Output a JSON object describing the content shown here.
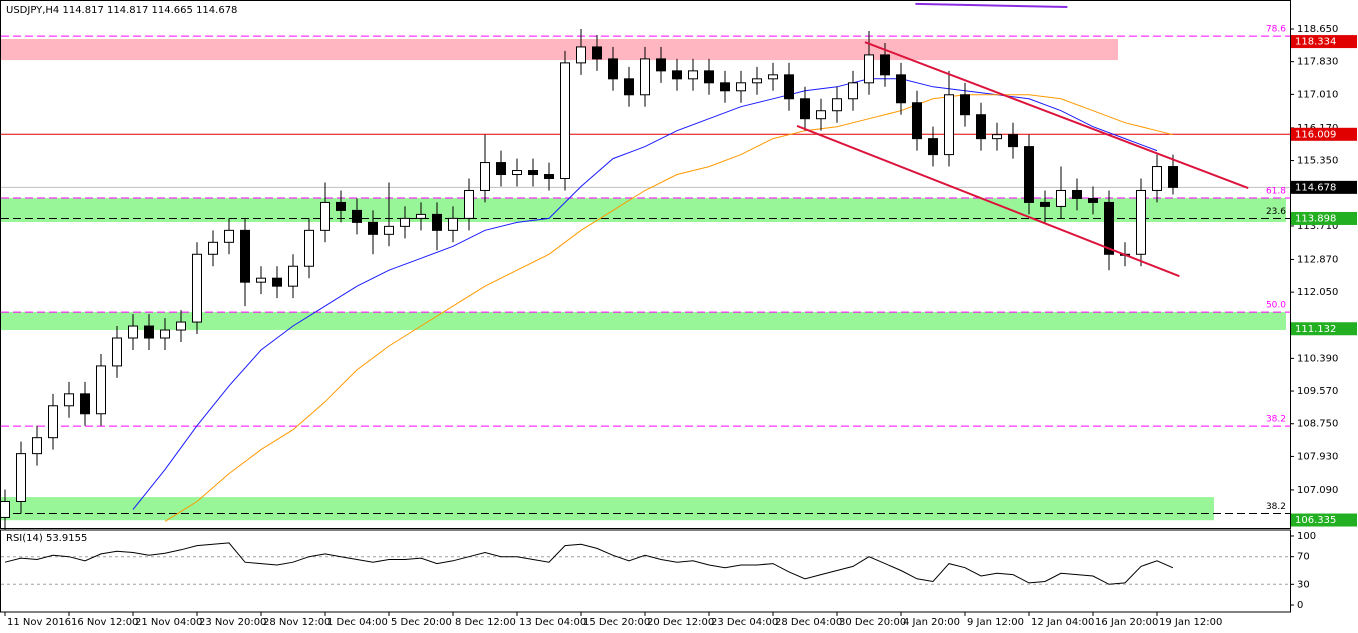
{
  "chart_data": [
    {
      "type": "candlestick",
      "title": "USDJPY,H4  114.817 114.817 114.665 114.678",
      "xlim": [
        -0.3125,
        80.3125
      ],
      "xticks": [
        {
          "value": 0,
          "label": "11 Nov 2016"
        },
        {
          "value": 4,
          "label": "16 Nov 12:00"
        },
        {
          "value": 8,
          "label": "21 Nov 04:00"
        },
        {
          "value": 12,
          "label": "23 Nov 20:00"
        },
        {
          "value": 16,
          "label": "28 Nov 12:00"
        },
        {
          "value": 20,
          "label": "1 Dec 04:00"
        },
        {
          "value": 24,
          "label": "5 Dec 20:00"
        },
        {
          "value": 28,
          "label": "8 Dec 12:00"
        },
        {
          "value": 32,
          "label": "13 Dec 04:00"
        },
        {
          "value": 36,
          "label": "15 Dec 20:00"
        },
        {
          "value": 40,
          "label": "20 Dec 12:00"
        },
        {
          "value": 44,
          "label": "23 Dec 04:00"
        },
        {
          "value": 48,
          "label": "28 Dec 04:00"
        },
        {
          "value": 52,
          "label": "30 Dec 20:00"
        },
        {
          "value": 56,
          "label": "4 Jan 20:00"
        },
        {
          "value": 60,
          "label": "9 Jan 12:00"
        },
        {
          "value": 64,
          "label": "12 Jan 04:00"
        },
        {
          "value": 68,
          "label": "16 Jan 20:00"
        },
        {
          "value": 72,
          "label": "19 Jan 12:00"
        }
      ],
      "ylim": [
        106.135,
        119.377
      ],
      "yticks": [
        {
          "value": 118.65,
          "label": "118.650"
        },
        {
          "value": 117.83,
          "label": "117.830"
        },
        {
          "value": 117.01,
          "label": "117.010"
        },
        {
          "value": 116.17,
          "label": "116.170"
        },
        {
          "value": 115.35,
          "label": "115.350"
        },
        {
          "value": 113.71,
          "label": "113.710"
        },
        {
          "value": 112.87,
          "label": "112.870"
        },
        {
          "value": 112.05,
          "label": "112.050"
        },
        {
          "value": 110.39,
          "label": "110.390"
        },
        {
          "value": 109.57,
          "label": "109.570"
        },
        {
          "value": 108.75,
          "label": "108.750"
        },
        {
          "value": 107.93,
          "label": "107.930"
        },
        {
          "value": 107.09,
          "label": "107.090"
        }
      ],
      "open": [
        106.4,
        106.8,
        108.0,
        108.4,
        109.2,
        109.5,
        109.0,
        110.2,
        110.9,
        111.2,
        110.9,
        111.1,
        111.3,
        113.0,
        113.3,
        113.6,
        112.3,
        112.4,
        112.2,
        112.7,
        113.6,
        114.3,
        114.1,
        113.8,
        113.5,
        113.7,
        113.9,
        114.0,
        113.6,
        113.9,
        114.6,
        115.3,
        115.0,
        115.1,
        115.0,
        114.9,
        117.8,
        118.2,
        117.9,
        117.4,
        117.0,
        117.9,
        117.6,
        117.4,
        117.6,
        117.3,
        117.1,
        117.3,
        117.4,
        117.5,
        116.9,
        116.4,
        116.6,
        116.9,
        117.3,
        118.0,
        117.5,
        116.8,
        115.9,
        115.5,
        117.0,
        116.5,
        115.9,
        116.0,
        115.7,
        114.3,
        114.2,
        114.6,
        114.4,
        114.3,
        113.0,
        113.0,
        114.6,
        115.2
      ],
      "high": [
        107.1,
        108.3,
        108.7,
        109.5,
        109.8,
        109.8,
        110.5,
        111.2,
        111.5,
        111.5,
        111.4,
        111.6,
        113.3,
        113.6,
        113.9,
        113.9,
        112.7,
        112.7,
        113.0,
        113.9,
        114.8,
        114.6,
        114.4,
        114.1,
        114.8,
        114.2,
        114.3,
        114.3,
        114.2,
        114.9,
        116.0,
        115.6,
        115.4,
        115.4,
        115.3,
        118.1,
        118.65,
        118.5,
        118.2,
        117.7,
        118.2,
        118.2,
        117.9,
        117.9,
        117.9,
        117.6,
        117.6,
        117.7,
        117.8,
        117.8,
        117.2,
        116.9,
        117.2,
        117.6,
        118.6,
        118.3,
        117.8,
        117.1,
        116.2,
        117.6,
        117.3,
        116.8,
        116.3,
        116.3,
        116.0,
        114.6,
        115.2,
        114.9,
        114.7,
        114.6,
        113.3,
        114.9,
        115.5,
        115.5
      ],
      "low": [
        106.1,
        106.5,
        107.7,
        108.1,
        108.9,
        108.7,
        108.7,
        109.9,
        110.6,
        110.6,
        110.6,
        110.8,
        111.0,
        112.7,
        113.0,
        111.7,
        112.0,
        111.9,
        111.9,
        112.4,
        113.3,
        113.8,
        113.5,
        113.0,
        113.2,
        113.4,
        113.6,
        113.1,
        113.3,
        113.6,
        114.3,
        114.7,
        114.7,
        114.7,
        114.6,
        114.6,
        117.5,
        117.6,
        117.1,
        116.7,
        116.7,
        117.3,
        117.1,
        117.1,
        117.0,
        116.8,
        116.8,
        117.0,
        117.1,
        116.6,
        116.1,
        116.1,
        116.3,
        116.6,
        117.0,
        117.2,
        116.5,
        115.6,
        115.2,
        115.2,
        116.2,
        115.6,
        115.6,
        115.4,
        114.0,
        113.8,
        113.9,
        114.1,
        114.0,
        112.6,
        112.7,
        112.7,
        114.3,
        114.5
      ],
      "close": [
        106.8,
        108.0,
        108.4,
        109.2,
        109.5,
        109.0,
        110.2,
        110.9,
        111.2,
        110.9,
        111.1,
        111.3,
        113.0,
        113.3,
        113.6,
        112.3,
        112.4,
        112.2,
        112.7,
        113.6,
        114.3,
        114.1,
        113.8,
        113.5,
        113.7,
        113.9,
        114.0,
        113.6,
        113.9,
        114.6,
        115.3,
        115.0,
        115.1,
        115.0,
        114.9,
        117.8,
        118.2,
        117.9,
        117.4,
        117.0,
        117.9,
        117.6,
        117.4,
        117.6,
        117.3,
        117.1,
        117.3,
        117.4,
        117.5,
        116.9,
        116.4,
        116.6,
        116.9,
        117.3,
        118.0,
        117.5,
        116.8,
        115.9,
        115.5,
        117.0,
        116.5,
        115.9,
        116.0,
        115.7,
        114.3,
        114.2,
        114.6,
        114.4,
        114.3,
        113.0,
        113.0,
        114.6,
        115.2,
        114.678
      ],
      "up_color": "#ffffff",
      "down_color": "#000000",
      "ma": [
        {
          "color": "#1a1aff",
          "x": [
            8,
            10,
            12,
            14,
            16,
            18,
            20,
            22,
            24,
            26,
            28,
            30,
            32,
            34,
            36,
            38,
            40,
            42,
            44,
            46,
            48,
            50,
            52,
            54,
            56,
            58,
            60,
            62,
            64,
            66,
            68,
            70,
            72
          ],
          "values": [
            106.6,
            107.6,
            108.7,
            109.7,
            110.6,
            111.2,
            111.7,
            112.2,
            112.6,
            112.9,
            113.2,
            113.6,
            113.8,
            113.9,
            114.7,
            115.4,
            115.7,
            116.1,
            116.4,
            116.7,
            116.9,
            117.1,
            117.2,
            117.4,
            117.4,
            117.2,
            117.1,
            117.0,
            116.9,
            116.6,
            116.2,
            115.9,
            115.6
          ]
        },
        {
          "color": "#ff9900",
          "x": [
            10,
            12,
            14,
            16,
            18,
            20,
            22,
            24,
            26,
            28,
            30,
            32,
            34,
            36,
            38,
            40,
            42,
            44,
            46,
            48,
            50,
            52,
            54,
            56,
            58,
            60,
            62,
            64,
            66,
            68,
            70,
            72,
            73
          ],
          "values": [
            106.3,
            106.8,
            107.5,
            108.1,
            108.6,
            109.3,
            110.1,
            110.7,
            111.2,
            111.7,
            112.2,
            112.6,
            113.0,
            113.6,
            114.1,
            114.6,
            115.0,
            115.2,
            115.5,
            115.9,
            116.1,
            116.2,
            116.4,
            116.6,
            116.9,
            117.0,
            117.0,
            117.0,
            116.9,
            116.6,
            116.3,
            116.1,
            116.0
          ]
        }
      ],
      "zones": [
        {
          "from": 118.4,
          "to": 117.87,
          "x_end": 69.56,
          "color": "#ffb6c1"
        },
        {
          "from": 114.41,
          "to": 113.81,
          "x_end": 80.06,
          "color": "#98f598"
        },
        {
          "from": 111.55,
          "to": 111.1,
          "x_end": 80.06,
          "color": "#98f598"
        },
        {
          "from": 106.91,
          "to": 106.33,
          "x_end": 75.56,
          "color": "#98f598"
        }
      ],
      "levels": [
        {
          "value": 118.47,
          "label": "78.6",
          "color": "#ff00ff",
          "style": "dash"
        },
        {
          "value": 116.009,
          "color": "#e00000",
          "style": "solid"
        },
        {
          "value": 114.678,
          "color": "#c0c0c0",
          "style": "solid"
        },
        {
          "value": 114.41,
          "label": "61.8",
          "color": "#ff00ff",
          "style": "dash"
        },
        {
          "value": 113.898,
          "label": "23.6",
          "color": "#000000",
          "style": "dash"
        },
        {
          "value": 111.55,
          "label": "50.0",
          "color": "#ff00ff",
          "style": "dash"
        },
        {
          "value": 108.69,
          "label": "38.2",
          "color": "#ff00ff",
          "style": "dash"
        },
        {
          "value": 106.5,
          "label": "38.2",
          "color": "#000000",
          "style": "dash"
        }
      ],
      "trendlines": [
        {
          "x": [
            53.75,
            77.7
          ],
          "values": [
            118.32,
            114.66
          ],
          "color": "#dc143c"
        },
        {
          "x": [
            49.5,
            73.4
          ],
          "values": [
            116.22,
            112.45
          ],
          "color": "#dc143c"
        },
        {
          "x": [
            56.9,
            66.4
          ],
          "values": [
            119.28,
            119.2
          ],
          "color": "#8b2be2"
        }
      ],
      "price_labels": [
        {
          "value": 118.334,
          "color": "#e00000"
        },
        {
          "value": 116.009,
          "color": "#e00000"
        },
        {
          "value": 114.678,
          "color": "#000000"
        },
        {
          "value": 113.898,
          "color": "#22b022"
        },
        {
          "value": 111.132,
          "color": "#22b022"
        },
        {
          "value": 106.335,
          "color": "#22b022"
        }
      ]
    },
    {
      "type": "line",
      "title": "RSI(14) 53.9155",
      "color": "#000000",
      "xlim": [
        -0.3125,
        80.3125
      ],
      "ylim": [
        -10.1,
        107.2
      ],
      "yticks": [
        100,
        70,
        30,
        0
      ],
      "levels": [
        70,
        30
      ],
      "values": [
        62,
        68,
        66,
        72,
        70,
        64,
        74,
        78,
        76,
        72,
        75,
        80,
        86,
        88,
        90,
        62,
        60,
        58,
        62,
        70,
        74,
        70,
        66,
        62,
        66,
        66,
        68,
        60,
        64,
        70,
        76,
        70,
        70,
        66,
        62,
        86,
        88,
        82,
        72,
        64,
        72,
        66,
        62,
        64,
        58,
        54,
        58,
        58,
        60,
        48,
        38,
        44,
        50,
        56,
        70,
        60,
        50,
        38,
        34,
        60,
        54,
        42,
        46,
        44,
        32,
        34,
        46,
        44,
        42,
        30,
        32,
        56,
        64,
        53.9155
      ]
    }
  ]
}
